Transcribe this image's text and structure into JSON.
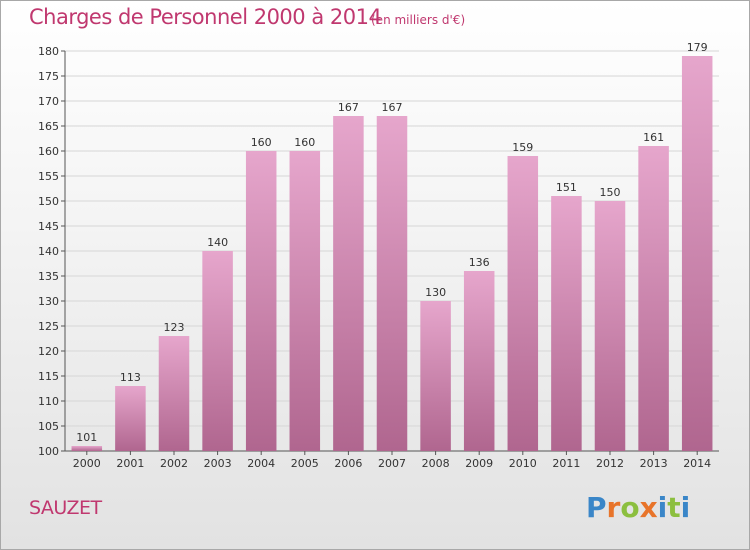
{
  "header": {
    "title": "Charges de Personnel 2000 à 2014",
    "subtitle": "(en milliers d'€)"
  },
  "footer": {
    "commune": "SAUZET",
    "logo_text": "Proxiti"
  },
  "colors": {
    "accent": "#c0386f",
    "bar_top": "#e6a6cc",
    "bar_bottom": "#b0668f",
    "grid": "#d6d6d6"
  },
  "chart_data": {
    "type": "bar",
    "title": "Charges de Personnel 2000 à 2014",
    "subtitle": "(en milliers d'€)",
    "xlabel": "",
    "ylabel": "",
    "categories": [
      "2000",
      "2001",
      "2002",
      "2003",
      "2004",
      "2005",
      "2006",
      "2007",
      "2008",
      "2009",
      "2010",
      "2011",
      "2012",
      "2013",
      "2014"
    ],
    "values": [
      101,
      113,
      123,
      140,
      160,
      160,
      167,
      167,
      130,
      136,
      159,
      151,
      150,
      161,
      179
    ],
    "ylim": [
      100,
      180
    ],
    "yticks": [
      100,
      105,
      110,
      115,
      120,
      125,
      130,
      135,
      140,
      145,
      150,
      155,
      160,
      165,
      170,
      175,
      180
    ],
    "grid": true,
    "legend": "none"
  }
}
